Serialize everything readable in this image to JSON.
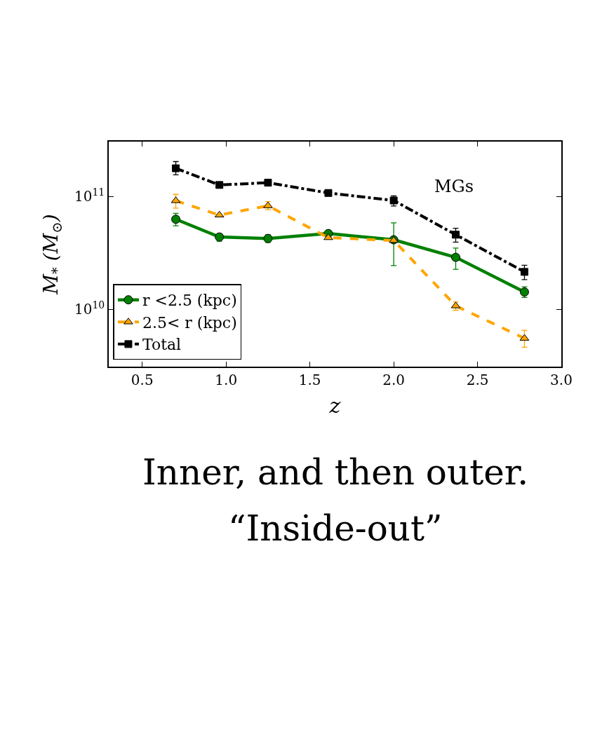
{
  "chart_data": {
    "type": "line",
    "x": [
      0.7,
      0.96,
      1.25,
      1.61,
      2.0,
      2.37,
      2.78
    ],
    "series": [
      {
        "name": "r <2.5 (kpc)",
        "color": "#008000",
        "marker": "circle",
        "line_style": "solid",
        "values": [
          62600000000.0,
          43600000000.0,
          42300000000.0,
          46800000000.0,
          41200000000.0,
          28800000000.0,
          14200000000.0
        ],
        "errors": [
          [
            54700000000.0,
            70500000000.0
          ],
          [
            40000000000.0,
            46200000000.0
          ],
          [
            39000000000.0,
            45600000000.0
          ],
          null,
          [
            24300000000.0,
            58200000000.0
          ],
          [
            22600000000.0,
            34800000000.0
          ],
          [
            12700000000.0,
            15800000000.0
          ]
        ]
      },
      {
        "name": "2.5< r (kpc)",
        "color": "#ffa500",
        "marker": "triangle",
        "line_style": "dashed",
        "values": [
          91400000000.0,
          68200000000.0,
          82400000000.0,
          43000000000.0,
          40600000000.0,
          10700000000.0,
          5520000000.0
        ],
        "errors": [
          [
            78500000000.0,
            104000000000.0
          ],
          null,
          [
            76000000000.0,
            89700000000.0
          ],
          null,
          null,
          [
            9800000000.0,
            11600000000.0
          ],
          [
            4600000000.0,
            6500000000.0
          ]
        ]
      },
      {
        "name": "Total",
        "color": "#000000",
        "marker": "square",
        "line_style": "dashdot",
        "values": [
          177000000000.0,
          126000000000.0,
          132000000000.0,
          107000000000.0,
          91800000000.0,
          45700000000.0,
          21400000000.0
        ],
        "errors": [
          [
            155000000000.0,
            203000000000.0
          ],
          null,
          null,
          null,
          [
            82000000000.0,
            101000000000.0
          ],
          [
            39300000000.0,
            52100000000.0
          ],
          [
            18300000000.0,
            24500000000.0
          ]
        ]
      }
    ],
    "xlabel": "z",
    "ylabel": "M$_{*}$ (M$_{⊙}$)",
    "log": "y",
    "xlim": [
      0.3,
      3.0
    ],
    "xticks": [
      {
        "value": 0.5,
        "label": "0.5"
      },
      {
        "value": 1.0,
        "label": "1.0"
      },
      {
        "value": 1.5,
        "label": "1.5"
      },
      {
        "value": 2.0,
        "label": "2.0"
      },
      {
        "value": 2.5,
        "label": "2.5"
      },
      {
        "value": 3.0,
        "label": "3.0"
      }
    ],
    "ylim": [
      3100000000.0,
      305000000000.0
    ],
    "yticks": [
      {
        "value": 10000000000.0,
        "label": "10$^{10}$"
      },
      {
        "value": 100000000000.0,
        "label": "10$^{11}$"
      }
    ],
    "legend": "bottom left",
    "annotations": [
      "MGs",
      "Inner, and then outer.",
      "“Inside-out”"
    ]
  }
}
